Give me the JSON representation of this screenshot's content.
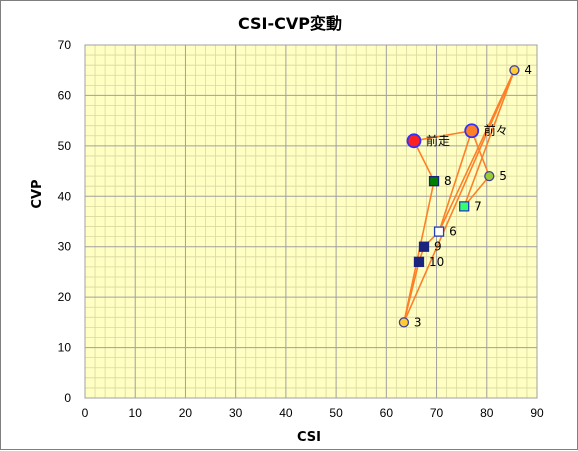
{
  "chart_data": {
    "type": "scatter",
    "title": "CSI-CVP変動",
    "xlabel": "CSI",
    "ylabel": "CVP",
    "xlim": [
      0,
      90
    ],
    "ylim": [
      0,
      70
    ],
    "xticks": [
      "0",
      "10",
      "20",
      "30",
      "40",
      "50",
      "60",
      "70",
      "80",
      "90"
    ],
    "yticks": [
      "0",
      "10",
      "20",
      "30",
      "40",
      "50",
      "60",
      "70"
    ],
    "grid": true,
    "major_step_x": 10,
    "major_step_y": 10,
    "minor_step_x": 2,
    "minor_step_y": 2,
    "colors": {
      "plot_bg": "#ffffc4",
      "grid_major": "#a0a0a0",
      "grid_minor": "#d8d8a0",
      "line": "#ff7f27"
    },
    "points": [
      {
        "label": "前走",
        "x": 65.5,
        "y": 51,
        "marker": "circle-large",
        "fill": "#ff2020",
        "stroke": "#3030ff"
      },
      {
        "label": "前々",
        "x": 77,
        "y": 53,
        "marker": "circle-large",
        "fill": "#ff7f27",
        "stroke": "#3030ff"
      },
      {
        "label": "3",
        "x": 63.5,
        "y": 15,
        "marker": "circle",
        "fill": "#ffcc33",
        "stroke": "#4040a0"
      },
      {
        "label": "4",
        "x": 85.5,
        "y": 65,
        "marker": "circle",
        "fill": "#ffcc33",
        "stroke": "#4040a0"
      },
      {
        "label": "5",
        "x": 80.5,
        "y": 44,
        "marker": "circle",
        "fill": "#9acd32",
        "stroke": "#4040a0"
      },
      {
        "label": "6",
        "x": 70.5,
        "y": 33,
        "marker": "square",
        "fill": "#ffffff",
        "stroke": "#2040c0"
      },
      {
        "label": "7",
        "x": 75.5,
        "y": 38,
        "marker": "square",
        "fill": "#33ff66",
        "stroke": "#2040c0"
      },
      {
        "label": "8",
        "x": 69.5,
        "y": 43,
        "marker": "square",
        "fill": "#008000",
        "stroke": "#1a237e"
      },
      {
        "label": "9",
        "x": 67.5,
        "y": 30,
        "marker": "square",
        "fill": "#1a237e",
        "stroke": "#1a237e"
      },
      {
        "label": "10",
        "x": 66.5,
        "y": 27,
        "marker": "square",
        "fill": "#1a237e",
        "stroke": "#1a237e"
      }
    ],
    "connections": [
      [
        "前走",
        "前々"
      ],
      [
        "前走",
        "8"
      ],
      [
        "前々",
        "6"
      ],
      [
        "前々",
        "5"
      ],
      [
        "3",
        "8"
      ],
      [
        "3",
        "4"
      ],
      [
        "4",
        "6"
      ],
      [
        "4",
        "7"
      ],
      [
        "5",
        "7"
      ],
      [
        "6",
        "9"
      ],
      [
        "9",
        "10"
      ],
      [
        "10",
        "3"
      ]
    ]
  }
}
